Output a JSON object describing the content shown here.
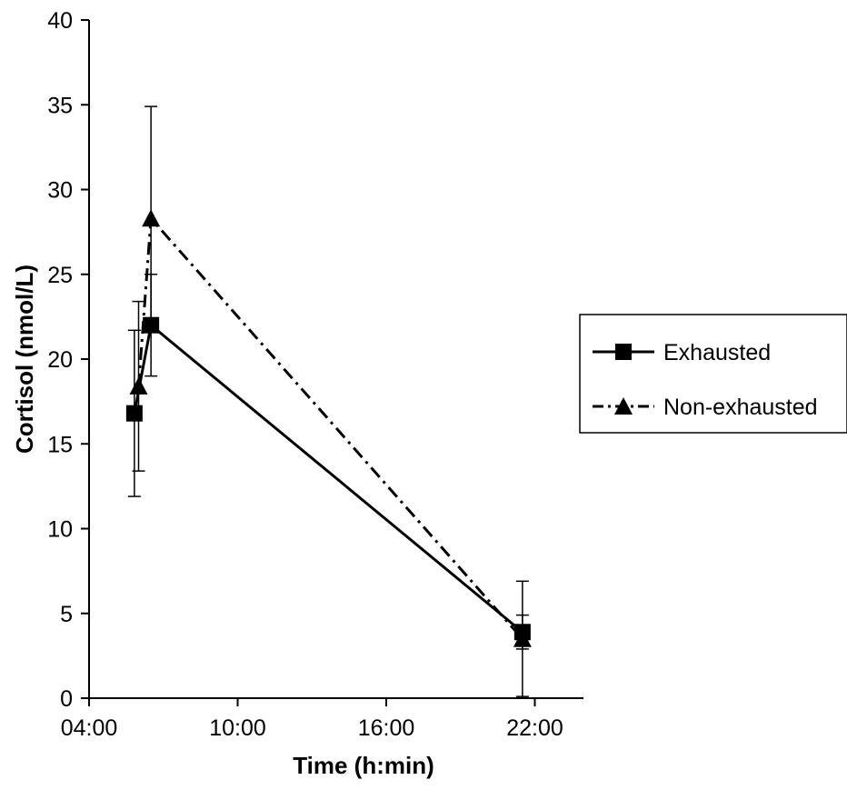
{
  "chart_data": {
    "type": "line",
    "title": "",
    "xlabel": "Time (h:min)",
    "ylabel": "Cortisol (nmol/L)",
    "x_ticks": [
      "04:00",
      "10:00",
      "16:00",
      "22:00"
    ],
    "x_tick_values_hours": [
      4,
      10,
      16,
      22
    ],
    "xlim_hours": [
      4,
      24
    ],
    "y_ticks": [
      "0",
      "5",
      "10",
      "15",
      "20",
      "25",
      "30",
      "35",
      "40"
    ],
    "ylim": [
      0,
      40
    ],
    "grid": false,
    "legend_position": "right",
    "series": [
      {
        "name": "Exhausted",
        "line_style": "solid",
        "marker": "square",
        "x": [
          "05:50",
          "06:30",
          "21:30"
        ],
        "x_hours": [
          5.83,
          6.5,
          21.5
        ],
        "y": [
          16.8,
          22.0,
          3.9
        ],
        "error": [
          4.9,
          3.0,
          1.0
        ]
      },
      {
        "name": "Non-exhausted",
        "line_style": "dash-dot",
        "marker": "triangle",
        "x": [
          "06:00",
          "06:30",
          "21:30"
        ],
        "x_hours": [
          6.0,
          6.5,
          21.5
        ],
        "y": [
          18.4,
          28.3,
          3.5
        ],
        "error": [
          5.0,
          6.6,
          3.4
        ]
      }
    ]
  }
}
